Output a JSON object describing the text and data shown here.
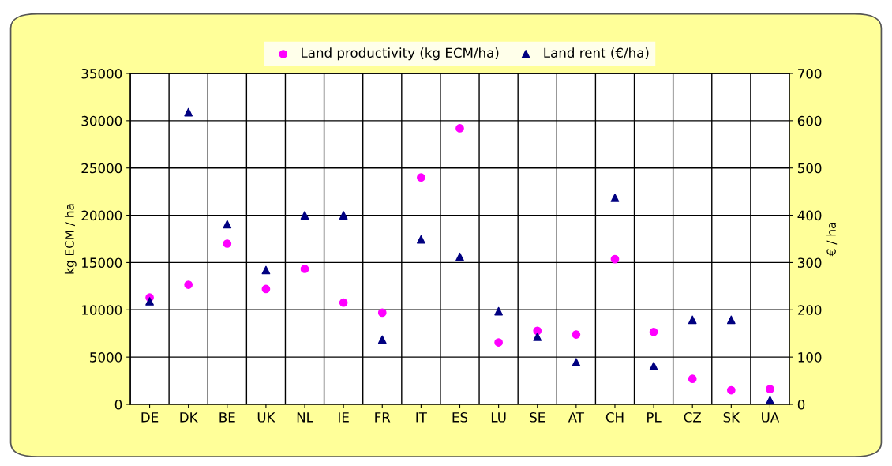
{
  "chart_data": {
    "type": "scatter",
    "ylabel": "kg ECM / ha",
    "y2label": "€ / ha",
    "categories": [
      "DE",
      "DK",
      "BE",
      "UK",
      "NL",
      "IE",
      "FR",
      "IT",
      "ES",
      "LU",
      "SE",
      "AT",
      "CH",
      "PL",
      "CZ",
      "SK",
      "UA"
    ],
    "series": [
      {
        "name": "Land productivity (kg ECM/ha)",
        "color": "#ff00ff",
        "marker": "circle",
        "values": [
          11300,
          12650,
          17000,
          12200,
          14330,
          10760,
          9700,
          24000,
          29200,
          6550,
          7780,
          7390,
          15360,
          7660,
          2700,
          1500,
          1620
        ]
      },
      {
        "name": "Land rent (€/ha)",
        "color": "#000080",
        "marker": "triangle",
        "axis": "y2",
        "values": [
          218,
          618,
          381,
          284,
          400,
          400,
          137,
          349,
          312,
          197,
          143,
          89,
          437,
          81,
          179,
          179,
          9
        ]
      }
    ],
    "ylim": [
      0,
      35000
    ],
    "yticks": [
      0,
      5000,
      10000,
      15000,
      20000,
      25000,
      30000,
      35000
    ],
    "y2lim": [
      0,
      700
    ],
    "y2ticks": [
      0,
      100,
      200,
      300,
      400,
      500,
      600,
      700
    ],
    "grid": true,
    "legend": "top"
  }
}
